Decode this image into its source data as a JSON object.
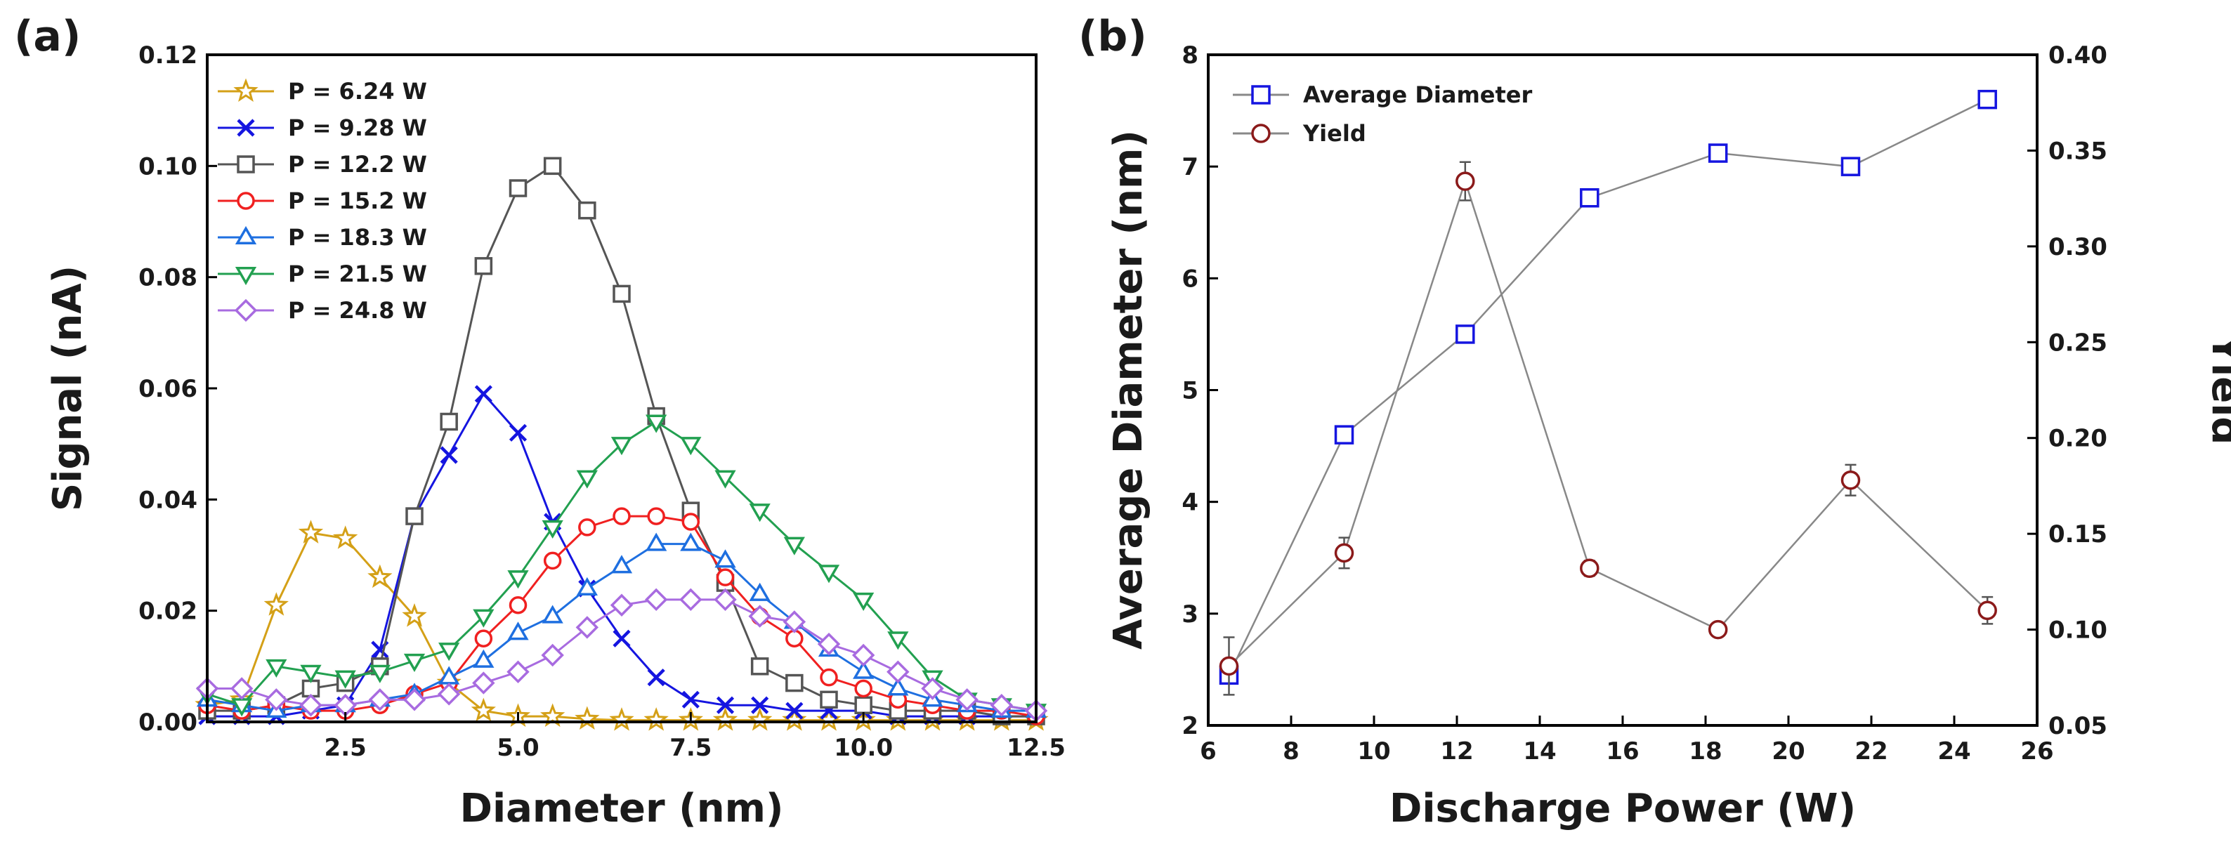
{
  "chart_data": [
    {
      "panel_label": "(a)",
      "type": "line",
      "xlabel": "Diameter (nm)",
      "ylabel": "Signal (nA)",
      "xlim": [
        0.5,
        12.5
      ],
      "ylim": [
        0,
        0.12
      ],
      "x_ticks": [
        2.5,
        5.0,
        7.5,
        10.0,
        12.5
      ],
      "x_tick_labels": [
        "2.5",
        "5.0",
        "7.5",
        "10.0",
        "12.5"
      ],
      "y_ticks": [
        0,
        0.02,
        0.04,
        0.06,
        0.08,
        0.1,
        0.12
      ],
      "y_tick_labels": [
        "0.00",
        "0.02",
        "0.04",
        "0.06",
        "0.08",
        "0.10",
        "0.12"
      ],
      "legend_position": "top-left",
      "series": [
        {
          "name": "P = 6.24 W",
          "color": "#D4A017",
          "marker": "star",
          "filled": false,
          "x": [
            0.5,
            1,
            1.5,
            2,
            2.5,
            3,
            3.5,
            4,
            4.5,
            5,
            5.5,
            6,
            6.5,
            7,
            7.5,
            8,
            8.5,
            9,
            9.5,
            10,
            10.5,
            11,
            11.5,
            12,
            12.5
          ],
          "y": [
            0.003,
            0.004,
            0.021,
            0.034,
            0.033,
            0.026,
            0.019,
            0.007,
            0.002,
            0.001,
            0.001,
            0.0005,
            0.0003,
            0.0003,
            0.0003,
            0.0003,
            0.0003,
            0.0003,
            0.0003,
            0.0003,
            0.0003,
            0.0003,
            0.0003,
            0.0003,
            0.0003
          ]
        },
        {
          "name": "P = 9.28 W",
          "color": "#1515E0",
          "marker": "x",
          "filled": false,
          "x": [
            0.5,
            1,
            1.5,
            2,
            2.5,
            3,
            3.5,
            4,
            4.5,
            5,
            5.5,
            6,
            6.5,
            7,
            7.5,
            8,
            8.5,
            9,
            9.5,
            10,
            10.5,
            11,
            11.5,
            12,
            12.5
          ],
          "y": [
            0.001,
            0.001,
            0.001,
            0.002,
            0.003,
            0.013,
            0.037,
            0.048,
            0.059,
            0.052,
            0.036,
            0.024,
            0.015,
            0.008,
            0.004,
            0.003,
            0.003,
            0.002,
            0.002,
            0.002,
            0.001,
            0.001,
            0.001,
            0.001,
            0.001
          ]
        },
        {
          "name": "P = 12.2 W",
          "color": "#555555",
          "marker": "square",
          "filled": false,
          "x": [
            0.5,
            1,
            1.5,
            2,
            2.5,
            3,
            3.5,
            4,
            4.5,
            5,
            5.5,
            6,
            6.5,
            7,
            7.5,
            8,
            8.5,
            9,
            9.5,
            10,
            10.5,
            11,
            11.5,
            12,
            12.5
          ],
          "y": [
            0.002,
            0.002,
            0.003,
            0.006,
            0.007,
            0.01,
            0.037,
            0.054,
            0.082,
            0.096,
            0.1,
            0.092,
            0.077,
            0.055,
            0.038,
            0.025,
            0.01,
            0.007,
            0.004,
            0.003,
            0.002,
            0.002,
            0.002,
            0.001,
            0.001
          ]
        },
        {
          "name": "P = 15.2 W",
          "color": "#F02020",
          "marker": "circle",
          "filled": false,
          "x": [
            0.5,
            1,
            1.5,
            2,
            2.5,
            3,
            3.5,
            4,
            4.5,
            5,
            5.5,
            6,
            6.5,
            7,
            7.5,
            8,
            8.5,
            9,
            9.5,
            10,
            10.5,
            11,
            11.5,
            12,
            12.5
          ],
          "y": [
            0.003,
            0.002,
            0.003,
            0.002,
            0.002,
            0.003,
            0.005,
            0.007,
            0.015,
            0.021,
            0.029,
            0.035,
            0.037,
            0.037,
            0.036,
            0.026,
            0.019,
            0.015,
            0.008,
            0.006,
            0.004,
            0.003,
            0.002,
            0.002,
            0.001
          ]
        },
        {
          "name": "P = 18.3 W",
          "color": "#1E6FE0",
          "marker": "triangle-up",
          "filled": false,
          "x": [
            0.5,
            1,
            1.5,
            2,
            2.5,
            3,
            3.5,
            4,
            4.5,
            5,
            5.5,
            6,
            6.5,
            7,
            7.5,
            8,
            8.5,
            9,
            9.5,
            10,
            10.5,
            11,
            11.5,
            12,
            12.5
          ],
          "y": [
            0.004,
            0.003,
            0.002,
            0.003,
            0.003,
            0.004,
            0.005,
            0.008,
            0.011,
            0.016,
            0.019,
            0.024,
            0.028,
            0.032,
            0.032,
            0.029,
            0.023,
            0.018,
            0.013,
            0.009,
            0.006,
            0.004,
            0.003,
            0.002,
            0.002
          ]
        },
        {
          "name": "P = 21.5 W",
          "color": "#22A050",
          "marker": "triangle-down",
          "filled": false,
          "x": [
            0.5,
            1,
            1.5,
            2,
            2.5,
            3,
            3.5,
            4,
            4.5,
            5,
            5.5,
            6,
            6.5,
            7,
            7.5,
            8,
            8.5,
            9,
            9.5,
            10,
            10.5,
            11,
            11.5,
            12,
            12.5
          ],
          "y": [
            0.005,
            0.003,
            0.01,
            0.009,
            0.008,
            0.009,
            0.011,
            0.013,
            0.019,
            0.026,
            0.035,
            0.044,
            0.05,
            0.054,
            0.05,
            0.044,
            0.038,
            0.032,
            0.027,
            0.022,
            0.015,
            0.008,
            0.004,
            0.003,
            0.002
          ]
        },
        {
          "name": "P = 24.8 W",
          "color": "#A86BE0",
          "marker": "diamond",
          "filled": false,
          "x": [
            0.5,
            1,
            1.5,
            2,
            2.5,
            3,
            3.5,
            4,
            4.5,
            5,
            5.5,
            6,
            6.5,
            7,
            7.5,
            8,
            8.5,
            9,
            9.5,
            10,
            10.5,
            11,
            11.5,
            12,
            12.5
          ],
          "y": [
            0.006,
            0.006,
            0.004,
            0.003,
            0.003,
            0.004,
            0.004,
            0.005,
            0.007,
            0.009,
            0.012,
            0.017,
            0.021,
            0.022,
            0.022,
            0.022,
            0.019,
            0.018,
            0.014,
            0.012,
            0.009,
            0.006,
            0.004,
            0.003,
            0.002
          ]
        }
      ]
    },
    {
      "panel_label": "(b)",
      "type": "line",
      "xlabel": "Discharge Power (W)",
      "ylabel": "Average Diameter (nm)",
      "y2label": "Yield",
      "xlim": [
        6,
        26
      ],
      "ylim": [
        2,
        8
      ],
      "y2lim": [
        0.05,
        0.4
      ],
      "x_ticks": [
        6,
        8,
        10,
        12,
        14,
        16,
        18,
        20,
        22,
        24,
        26
      ],
      "x_tick_labels": [
        "6",
        "8",
        "10",
        "12",
        "14",
        "16",
        "18",
        "20",
        "22",
        "24",
        "26"
      ],
      "y_ticks": [
        2,
        3,
        4,
        5,
        6,
        7,
        8
      ],
      "y_tick_labels": [
        "2",
        "3",
        "4",
        "5",
        "6",
        "7",
        "8"
      ],
      "y2_ticks": [
        0.05,
        0.1,
        0.15,
        0.2,
        0.25,
        0.3,
        0.35,
        0.4
      ],
      "y2_tick_labels": [
        "0.05",
        "0.10",
        "0.15",
        "0.20",
        "0.25",
        "0.30",
        "0.35",
        "0.40"
      ],
      "legend_position": "top-left",
      "series": [
        {
          "name": "Average Diameter",
          "axis": "left",
          "color": "#1515E0",
          "marker": "square",
          "x": [
            6.5,
            9.28,
            12.2,
            15.2,
            18.3,
            21.5,
            24.8
          ],
          "y": [
            2.45,
            4.6,
            5.5,
            6.72,
            7.12,
            7.0,
            7.6
          ],
          "err": [
            0.05,
            0.05,
            0.06,
            0.05,
            0.05,
            0.05,
            0.05
          ]
        },
        {
          "name": "Yield",
          "axis": "right",
          "color": "#8B1A1A",
          "marker": "circle",
          "x": [
            6.5,
            9.28,
            12.2,
            15.2,
            18.3,
            21.5,
            24.8
          ],
          "y": [
            0.081,
            0.14,
            0.334,
            0.132,
            0.1,
            0.178,
            0.11
          ],
          "err": [
            0.015,
            0.008,
            0.01,
            0.004,
            0.003,
            0.008,
            0.007
          ]
        }
      ]
    }
  ]
}
